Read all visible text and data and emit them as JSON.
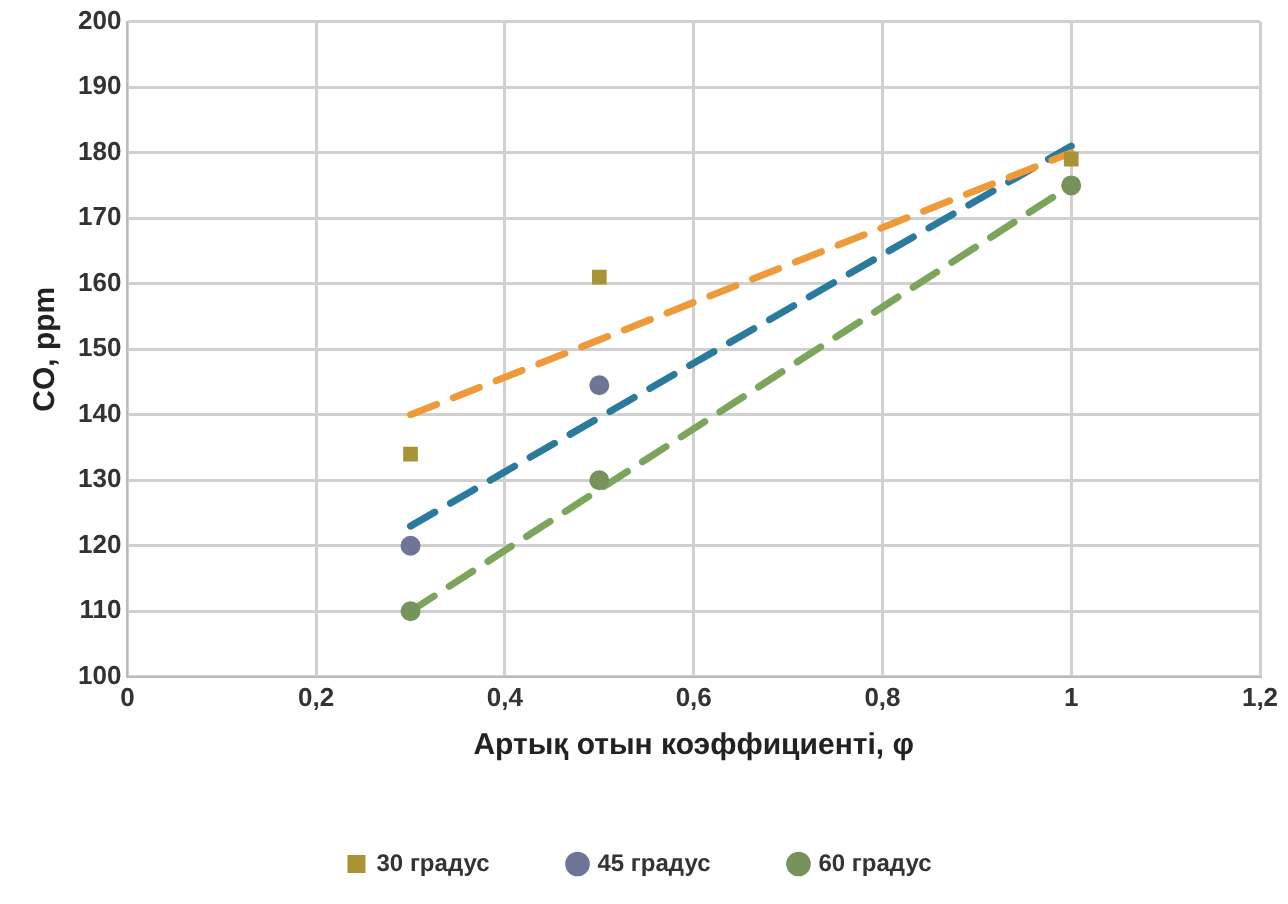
{
  "chart_data": {
    "type": "scatter",
    "xlabel": "Артық отын коэффициенті, φ",
    "ylabel": "CO, ppm",
    "xlim": [
      0,
      1.2
    ],
    "xticks": [
      {
        "value": 0,
        "label": "0"
      },
      {
        "value": 0.2,
        "label": "0,2"
      },
      {
        "value": 0.4,
        "label": "0,4"
      },
      {
        "value": 0.6,
        "label": "0,6"
      },
      {
        "value": 0.8,
        "label": "0,8"
      },
      {
        "value": 1,
        "label": "1"
      },
      {
        "value": 1.2,
        "label": "1,2"
      }
    ],
    "ylim": [
      100,
      200
    ],
    "yticks": [
      100,
      110,
      120,
      130,
      140,
      150,
      160,
      170,
      180,
      190,
      200
    ],
    "grid": true,
    "legend": "bottom",
    "series": [
      {
        "name": "30 градус",
        "color": "#a89437",
        "marker": "square",
        "x": [
          0.3,
          0.5,
          1
        ],
        "values": [
          134,
          161,
          179
        ]
      },
      {
        "name": "45 градус",
        "color": "#6f7596",
        "marker": "circle",
        "x": [
          0.3,
          0.5
        ],
        "values": [
          120,
          144.5
        ]
      },
      {
        "name": "60 градус",
        "color": "#76935c",
        "marker": "circle",
        "x": [
          0.3,
          0.5,
          1
        ],
        "values": [
          110,
          130,
          175
        ]
      },
      {
        "type": "line",
        "color": "#ee9a38",
        "line_style": "dashed",
        "marker": "none",
        "x": [
          0.3,
          1
        ],
        "values": [
          140,
          180
        ]
      },
      {
        "type": "line",
        "color": "#2a7a9b",
        "line_style": "dashed",
        "marker": "none",
        "x": [
          0.3,
          1
        ],
        "values": [
          123,
          181
        ]
      },
      {
        "type": "line",
        "color": "#7aa55a",
        "line_style": "dashed",
        "marker": "none",
        "x": [
          0.3,
          1
        ],
        "values": [
          110,
          175
        ]
      }
    ]
  }
}
